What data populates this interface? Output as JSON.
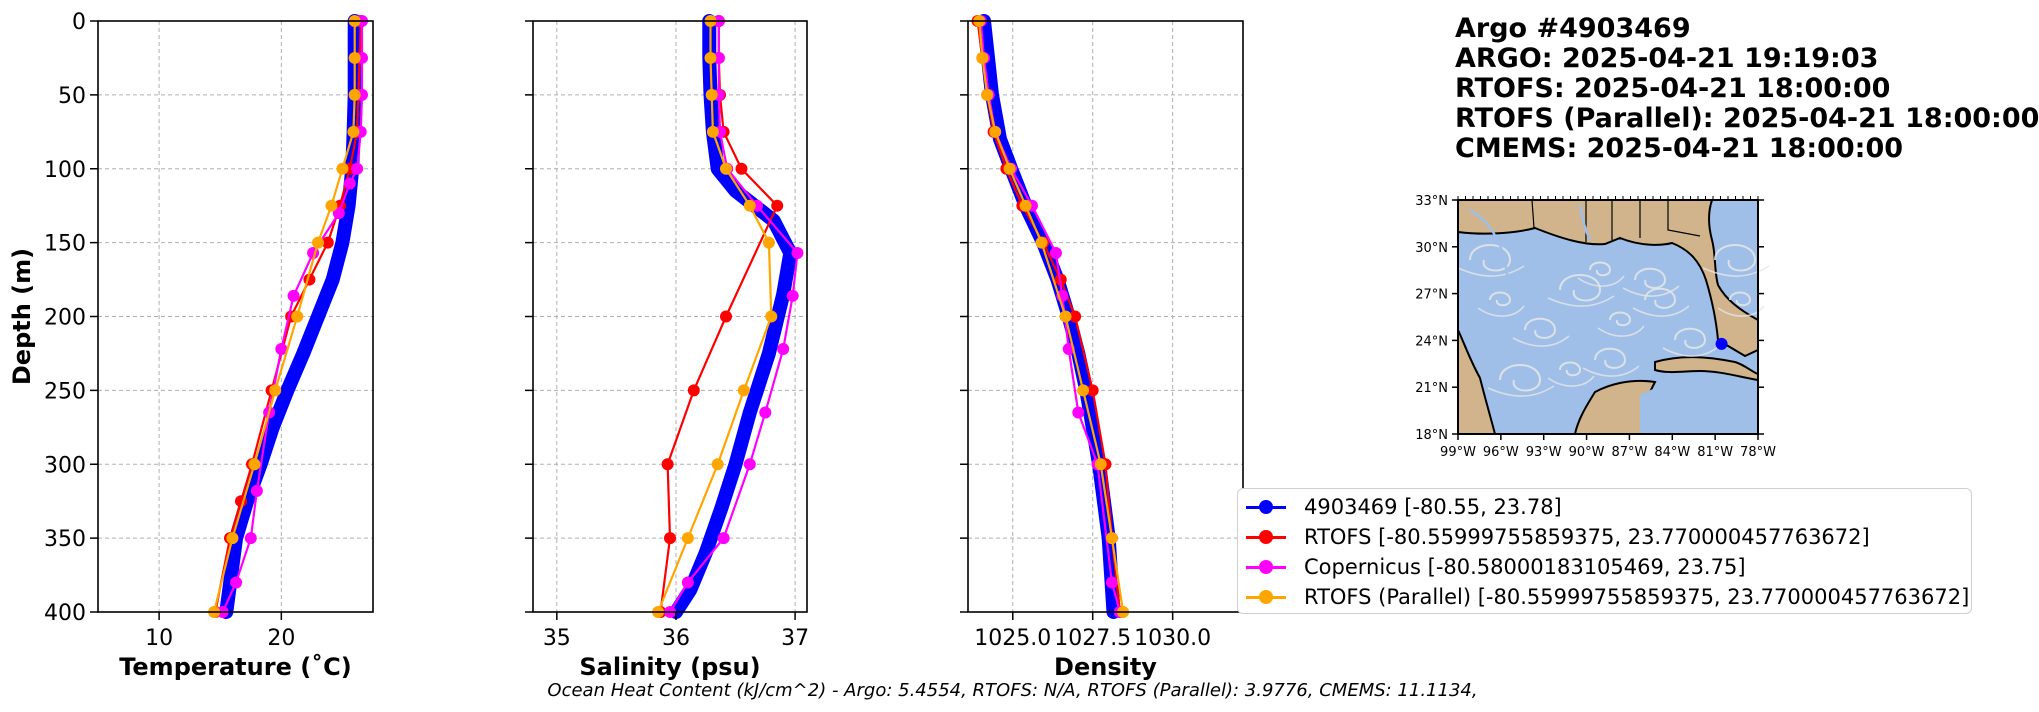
{
  "title": {
    "lines": [
      "Argo #4903469",
      "ARGO:  2025-04-21 19:19:03",
      "RTOFS: 2025-04-21 18:00:00",
      "RTOFS (Parallel): 2025-04-21 18:00:00",
      "CMEMS: 2025-04-21 18:00:00"
    ]
  },
  "footer": "Ocean Heat Content (kJ/cm^2) - Argo: 5.4554,  RTOFS: N/A,  RTOFS (Parallel): 3.9776,  CMEMS: 11.1134,",
  "colors": {
    "argo": "#0000ff",
    "rtofs": "#ff0000",
    "copernicus": "#ff00ff",
    "rtofs_parallel": "#ffa500",
    "land": "#d2b48c",
    "ocean": "#9fbfe8",
    "grid": "#b0b0b0"
  },
  "legend": [
    {
      "label": "4903469 [-80.55, 23.78]",
      "color": "#0000ff"
    },
    {
      "label": "RTOFS [-80.55999755859375, 23.770000457763672]",
      "color": "#ff0000"
    },
    {
      "label": "Copernicus [-80.58000183105469, 23.75]",
      "color": "#ff00ff"
    },
    {
      "label": "RTOFS (Parallel) [-80.55999755859375, 23.770000457763672]",
      "color": "#ffa500"
    }
  ],
  "chart_data": [
    {
      "type": "line",
      "xlabel": "Temperature (˚C)",
      "ylabel": "Depth (m)",
      "xlim": [
        5,
        27.5
      ],
      "ylim": [
        400,
        0
      ],
      "xticks": [
        10,
        20
      ],
      "yticks": [
        0,
        50,
        100,
        150,
        200,
        250,
        300,
        350,
        400
      ],
      "grid": true,
      "series": [
        {
          "name": "4903469",
          "x": [
            26.0,
            26.0,
            26.0,
            25.9,
            25.8,
            25.5,
            25.0,
            24.2,
            23.0,
            21.8,
            20.5,
            19.3,
            18.3,
            17.2,
            16.3,
            15.5
          ],
          "y": [
            0,
            20,
            50,
            80,
            100,
            125,
            150,
            175,
            200,
            225,
            250,
            275,
            300,
            325,
            350,
            400
          ]
        },
        {
          "name": "RTOFS",
          "x": [
            26.5,
            26.4,
            26.3,
            26.2,
            25.6,
            24.8,
            23.8,
            22.3,
            20.8,
            19.2,
            17.6,
            16.7,
            15.8,
            14.6
          ],
          "y": [
            0,
            25,
            50,
            75,
            100,
            125,
            150,
            175,
            200,
            250,
            300,
            325,
            350,
            400
          ]
        },
        {
          "name": "Copernicus",
          "x": [
            26.6,
            26.6,
            26.6,
            26.5,
            26.2,
            25.6,
            24.7,
            22.6,
            21.0,
            20.0,
            19.0,
            18.0,
            17.5,
            16.3,
            15.2
          ],
          "y": [
            0,
            25,
            50,
            75,
            100,
            110,
            130,
            157,
            186,
            222,
            265,
            318,
            350,
            380,
            400
          ]
        },
        {
          "name": "RTOFS (Parallel)",
          "x": [
            26.0,
            26.0,
            26.0,
            25.9,
            25.0,
            24.1,
            23.0,
            21.3,
            19.5,
            17.8,
            16.0,
            14.5
          ],
          "y": [
            0,
            25,
            50,
            75,
            100,
            125,
            150,
            200,
            250,
            300,
            350,
            400
          ]
        }
      ]
    },
    {
      "type": "line",
      "xlabel": "Salinity (psu)",
      "xlim": [
        34.8,
        37.1
      ],
      "ylim": [
        400,
        0
      ],
      "xticks": [
        35,
        36,
        37
      ],
      "yticks": [
        0,
        50,
        100,
        150,
        200,
        250,
        300,
        350,
        400
      ],
      "grid": true,
      "series": [
        {
          "name": "4903469",
          "x": [
            36.28,
            36.28,
            36.29,
            36.31,
            36.35,
            36.5,
            36.82,
            36.96,
            36.9,
            36.78,
            36.62,
            36.5,
            36.38,
            36.25,
            36.12,
            36.0
          ],
          "y": [
            0,
            25,
            50,
            75,
            100,
            115,
            135,
            157,
            185,
            225,
            265,
            300,
            330,
            360,
            385,
            400
          ]
        },
        {
          "name": "RTOFS",
          "x": [
            36.36,
            36.36,
            36.37,
            36.4,
            36.55,
            36.85,
            36.42,
            36.15,
            35.93,
            35.95,
            35.87
          ],
          "y": [
            0,
            25,
            50,
            75,
            100,
            125,
            200,
            250,
            300,
            350,
            400
          ]
        },
        {
          "name": "Copernicus",
          "x": [
            36.36,
            36.36,
            36.36,
            36.37,
            36.43,
            36.68,
            37.02,
            36.98,
            36.9,
            36.75,
            36.62,
            36.4,
            36.1,
            35.95
          ],
          "y": [
            0,
            25,
            50,
            75,
            100,
            125,
            157,
            186,
            222,
            265,
            300,
            350,
            380,
            400
          ]
        },
        {
          "name": "RTOFS (Parallel)",
          "x": [
            36.29,
            36.29,
            36.3,
            36.31,
            36.42,
            36.62,
            36.78,
            36.8,
            36.57,
            36.35,
            36.1,
            35.85
          ],
          "y": [
            0,
            25,
            50,
            75,
            100,
            125,
            150,
            200,
            250,
            300,
            350,
            400
          ]
        }
      ]
    },
    {
      "type": "line",
      "xlabel": "Density",
      "xlim": [
        1023.6,
        1032.2
      ],
      "ylim": [
        400,
        0
      ],
      "xticks": [
        1025.0,
        1027.5,
        1030.0
      ],
      "xtick_labels": [
        "1025.0",
        "1027.5",
        "1030.0"
      ],
      "yticks": [
        0,
        50,
        100,
        150,
        200,
        250,
        300,
        350,
        400
      ],
      "grid": true,
      "series": [
        {
          "name": "4903469",
          "x": [
            1024.1,
            1024.2,
            1024.35,
            1024.6,
            1024.95,
            1025.4,
            1025.95,
            1026.4,
            1026.75,
            1027.05,
            1027.3,
            1027.5,
            1027.7,
            1027.85,
            1028.0,
            1028.15
          ],
          "y": [
            0,
            20,
            50,
            80,
            100,
            125,
            150,
            175,
            200,
            225,
            250,
            275,
            300,
            325,
            350,
            400
          ]
        },
        {
          "name": "RTOFS",
          "x": [
            1023.9,
            1024.05,
            1024.2,
            1024.4,
            1024.8,
            1025.3,
            1025.95,
            1026.5,
            1026.95,
            1027.5,
            1027.9,
            1028.1,
            1028.35
          ],
          "y": [
            0,
            25,
            50,
            75,
            100,
            125,
            150,
            175,
            200,
            250,
            300,
            350,
            400
          ]
        },
        {
          "name": "Copernicus",
          "x": [
            1024.0,
            1024.1,
            1024.25,
            1024.45,
            1024.95,
            1025.6,
            1026.35,
            1026.55,
            1026.75,
            1027.05,
            1027.65,
            1028.1,
            1028.35
          ],
          "y": [
            0,
            25,
            50,
            75,
            100,
            125,
            157,
            186,
            222,
            265,
            300,
            380,
            400
          ]
        },
        {
          "name": "RTOFS (Parallel)",
          "x": [
            1023.95,
            1024.05,
            1024.2,
            1024.45,
            1024.9,
            1025.4,
            1025.9,
            1026.65,
            1027.2,
            1027.75,
            1028.1,
            1028.45
          ],
          "y": [
            0,
            25,
            50,
            75,
            100,
            125,
            150,
            200,
            250,
            300,
            350,
            400
          ]
        }
      ]
    }
  ],
  "map": {
    "lon_labels": [
      "99°W",
      "96°W",
      "93°W",
      "90°W",
      "87°W",
      "84°W",
      "81°W",
      "78°W"
    ],
    "lat_labels": [
      "33°N",
      "30°N",
      "27°N",
      "24°N",
      "21°N",
      "18°N"
    ],
    "lon_range": [
      -99,
      -78
    ],
    "lat_range": [
      18,
      33
    ],
    "float_position": [
      -80.55,
      23.78
    ]
  }
}
